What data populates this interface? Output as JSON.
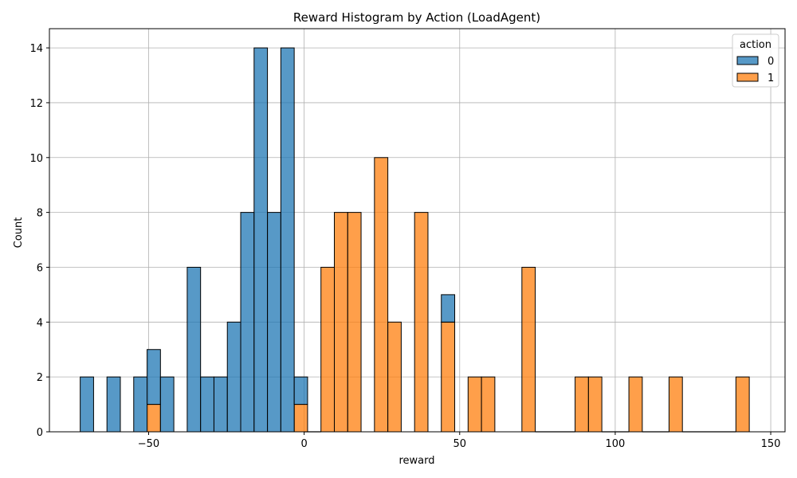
{
  "chart_data": {
    "type": "bar",
    "stacked": true,
    "title": "Reward Histogram by Action (LoadAgent)",
    "xlabel": "reward",
    "ylabel": "Count",
    "xlim": [
      -81.9,
      154.6
    ],
    "ylim": [
      0,
      14.7
    ],
    "xticks": [
      -50,
      0,
      50,
      100,
      150
    ],
    "yticks": [
      0,
      2,
      4,
      6,
      8,
      10,
      12,
      14
    ],
    "grid": true,
    "legend": {
      "title": "action",
      "placement": "top-right"
    },
    "bin_width": 4.3,
    "series": [
      {
        "name": "0",
        "color": "#1f77b4",
        "bins": [
          {
            "x0": -72.0,
            "count": 2
          },
          {
            "x0": -63.4,
            "count": 2
          },
          {
            "x0": -54.8,
            "count": 2
          },
          {
            "x0": -50.5,
            "count": 2
          },
          {
            "x0": -46.2,
            "count": 2
          },
          {
            "x0": -37.6,
            "count": 6
          },
          {
            "x0": -33.3,
            "count": 2
          },
          {
            "x0": -29.0,
            "count": 2
          },
          {
            "x0": -24.7,
            "count": 4
          },
          {
            "x0": -20.4,
            "count": 8
          },
          {
            "x0": -16.1,
            "count": 14
          },
          {
            "x0": -11.8,
            "count": 8
          },
          {
            "x0": -7.5,
            "count": 14
          },
          {
            "x0": -3.2,
            "count": 1
          },
          {
            "x0": 44.1,
            "count": 1
          }
        ]
      },
      {
        "name": "1",
        "color": "#ff7f0e",
        "bins": [
          {
            "x0": -50.5,
            "count": 1
          },
          {
            "x0": -3.2,
            "count": 1
          },
          {
            "x0": 5.4,
            "count": 6
          },
          {
            "x0": 9.7,
            "count": 8
          },
          {
            "x0": 14.0,
            "count": 8
          },
          {
            "x0": 22.6,
            "count": 10
          },
          {
            "x0": 26.9,
            "count": 4
          },
          {
            "x0": 35.5,
            "count": 8
          },
          {
            "x0": 44.1,
            "count": 4
          },
          {
            "x0": 52.7,
            "count": 2
          },
          {
            "x0": 57.0,
            "count": 2
          },
          {
            "x0": 70.0,
            "count": 6
          },
          {
            "x0": 87.1,
            "count": 2
          },
          {
            "x0": 91.4,
            "count": 2
          },
          {
            "x0": 104.4,
            "count": 2
          },
          {
            "x0": 117.3,
            "count": 2
          },
          {
            "x0": 138.8,
            "count": 2
          }
        ]
      }
    ],
    "zero_baseline_ranges": [
      [
        0.0,
        5.4
      ],
      [
        74.3,
        87.1
      ],
      [
        95.7,
        104.4
      ],
      [
        108.7,
        117.3
      ],
      [
        121.6,
        138.8
      ]
    ]
  }
}
